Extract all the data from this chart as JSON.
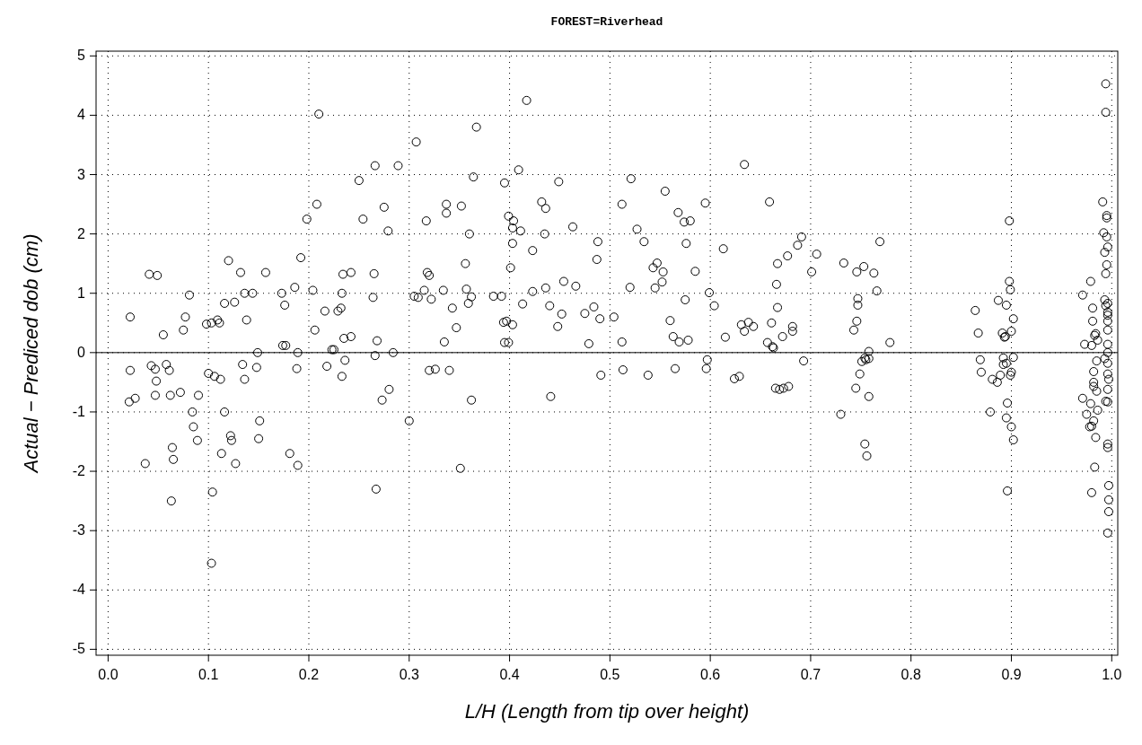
{
  "chart_data": {
    "type": "scatter",
    "title": "FOREST=Riverhead",
    "xlabel": "L/H (Length from tip over height)",
    "ylabel": "Actual − Prediced dob (cm)",
    "xlim": [
      -0.012,
      1.006
    ],
    "ylim": [
      -5.1,
      5.08
    ],
    "xticks": [
      {
        "value": 0,
        "label": "0.0"
      },
      0.1,
      0.2,
      0.3,
      0.4,
      0.5,
      0.6,
      0.7,
      0.8,
      0.9,
      {
        "value": 1,
        "label": "1.0"
      }
    ],
    "yticks": [
      -5,
      -4,
      -3,
      -2,
      -1,
      0,
      1,
      2,
      3,
      4,
      5
    ],
    "grid": true,
    "marker": "circle",
    "ref_lines": [
      {
        "axis": "y",
        "value": 0,
        "color": "#000000"
      }
    ],
    "series": [
      {
        "color": "#000000",
        "x": [
          0.021,
          0.022,
          0.022,
          0.027,
          0.037,
          0.041,
          0.043,
          0.047,
          0.049,
          0.047,
          0.048,
          0.055,
          0.058,
          0.061,
          0.062,
          0.063,
          0.064,
          0.065,
          0.072,
          0.075,
          0.077,
          0.081,
          0.084,
          0.085,
          0.089,
          0.09,
          0.098,
          0.1,
          0.103,
          0.104,
          0.103,
          0.106,
          0.109,
          0.111,
          0.112,
          0.113,
          0.116,
          0.116,
          0.12,
          0.122,
          0.123,
          0.126,
          0.127,
          0.132,
          0.134,
          0.136,
          0.136,
          0.138,
          0.144,
          0.148,
          0.149,
          0.151,
          0.15,
          0.157,
          0.173,
          0.174,
          0.176,
          0.177,
          0.181,
          0.186,
          0.188,
          0.189,
          0.189,
          0.192,
          0.198,
          0.204,
          0.206,
          0.208,
          0.21,
          0.216,
          0.218,
          0.223,
          0.225,
          0.229,
          0.232,
          0.233,
          0.233,
          0.234,
          0.235,
          0.236,
          0.242,
          0.242,
          0.25,
          0.254,
          0.264,
          0.265,
          0.266,
          0.266,
          0.267,
          0.268,
          0.273,
          0.275,
          0.279,
          0.28,
          0.284,
          0.289,
          0.3,
          0.305,
          0.307,
          0.309,
          0.315,
          0.317,
          0.318,
          0.32,
          0.32,
          0.322,
          0.326,
          0.334,
          0.335,
          0.337,
          0.337,
          0.34,
          0.343,
          0.347,
          0.351,
          0.352,
          0.356,
          0.357,
          0.359,
          0.36,
          0.362,
          0.362,
          0.364,
          0.367,
          0.384,
          0.392,
          0.394,
          0.395,
          0.395,
          0.397,
          0.399,
          0.403,
          0.399,
          0.403,
          0.401,
          0.403,
          0.404,
          0.409,
          0.411,
          0.413,
          0.417,
          0.423,
          0.423,
          0.432,
          0.435,
          0.436,
          0.436,
          0.44,
          0.441,
          0.448,
          0.449,
          0.452,
          0.454,
          0.463,
          0.466,
          0.475,
          0.479,
          0.484,
          0.487,
          0.488,
          0.49,
          0.491,
          0.504,
          0.512,
          0.512,
          0.513,
          0.52,
          0.521,
          0.527,
          0.534,
          0.538,
          0.543,
          0.545,
          0.547,
          0.552,
          0.553,
          0.555,
          0.56,
          0.563,
          0.565,
          0.568,
          0.569,
          0.574,
          0.575,
          0.576,
          0.578,
          0.58,
          0.585,
          0.595,
          0.596,
          0.597,
          0.599,
          0.604,
          0.613,
          0.615,
          0.624,
          0.629,
          0.631,
          0.634,
          0.634,
          0.638,
          0.643,
          0.657,
          0.659,
          0.661,
          0.662,
          0.663,
          0.665,
          0.666,
          0.667,
          0.667,
          0.669,
          0.672,
          0.673,
          0.677,
          0.678,
          0.682,
          0.682,
          0.687,
          0.691,
          0.693,
          0.701,
          0.706,
          0.73,
          0.733,
          0.743,
          0.746,
          0.745,
          0.746,
          0.747,
          0.747,
          0.749,
          0.751,
          0.753,
          0.754,
          0.755,
          0.754,
          0.756,
          0.758,
          0.758,
          0.758,
          0.763,
          0.766,
          0.769,
          0.779,
          0.864,
          0.867,
          0.869,
          0.87,
          0.879,
          0.881,
          0.886,
          0.887,
          0.889,
          0.891,
          0.892,
          0.892,
          0.893,
          0.894,
          0.895,
          0.895,
          0.895,
          0.896,
          0.898,
          0.896,
          0.898,
          0.899,
          0.9,
          0.9,
          0.899,
          0.902,
          0.9,
          0.902,
          0.902,
          0.971,
          0.971,
          0.973,
          0.975,
          0.978,
          0.979,
          0.979,
          0.98,
          0.98,
          0.98,
          0.981,
          0.981,
          0.982,
          0.982,
          0.982,
          0.982,
          0.983,
          0.983,
          0.984,
          0.984,
          0.985,
          0.986,
          0.986,
          0.985,
          0.991,
          0.992,
          0.993,
          0.993,
          0.993,
          0.994,
          0.994,
          0.994,
          0.994,
          0.994,
          0.995,
          0.995,
          0.995,
          0.995,
          0.996,
          0.996,
          0.996,
          0.996,
          0.996,
          0.996,
          0.996,
          0.996,
          0.996,
          0.996,
          0.997,
          0.997,
          0.997,
          0.996,
          0.996,
          0.996,
          0.996,
          0.996,
          0.997
        ],
        "values": [
          -0.83,
          0.6,
          -0.3,
          -0.77,
          -1.87,
          1.32,
          -0.22,
          -0.28,
          1.3,
          -0.72,
          -0.48,
          0.3,
          -0.2,
          -0.3,
          -0.72,
          -2.5,
          -1.6,
          -1.8,
          -0.67,
          0.38,
          0.6,
          0.97,
          -1.0,
          -1.25,
          -1.48,
          -0.72,
          0.48,
          -0.35,
          0.5,
          -2.35,
          -3.55,
          -0.4,
          0.55,
          0.5,
          -0.45,
          -1.7,
          0.83,
          -1.0,
          1.55,
          -1.4,
          -1.48,
          0.85,
          -1.87,
          1.35,
          -0.2,
          -0.45,
          1.0,
          0.55,
          1.0,
          -0.25,
          0.0,
          -1.15,
          -1.45,
          1.35,
          1.0,
          0.12,
          0.8,
          0.12,
          -1.7,
          1.1,
          -0.27,
          -1.9,
          0.0,
          1.6,
          2.25,
          1.05,
          0.38,
          2.5,
          4.02,
          0.7,
          -0.23,
          0.05,
          0.05,
          0.7,
          0.75,
          -0.4,
          1.0,
          1.32,
          0.24,
          -0.13,
          1.35,
          0.27,
          2.9,
          2.25,
          0.93,
          1.33,
          -0.05,
          3.15,
          -2.3,
          0.2,
          -0.8,
          2.45,
          2.05,
          -0.62,
          0.0,
          3.15,
          -1.15,
          0.95,
          3.55,
          0.93,
          1.05,
          2.22,
          1.35,
          1.3,
          -0.3,
          0.9,
          -0.28,
          1.05,
          0.18,
          2.35,
          2.5,
          -0.3,
          0.75,
          0.42,
          -1.95,
          2.47,
          1.5,
          1.07,
          0.83,
          2.0,
          0.94,
          -0.8,
          2.96,
          3.8,
          0.95,
          0.95,
          0.51,
          2.86,
          0.17,
          0.53,
          0.17,
          0.47,
          2.3,
          2.1,
          1.43,
          1.84,
          2.22,
          3.08,
          2.05,
          0.82,
          4.25,
          1.03,
          1.72,
          2.54,
          2.0,
          1.09,
          2.43,
          0.79,
          -0.74,
          0.44,
          2.88,
          0.65,
          1.2,
          2.12,
          1.12,
          0.66,
          0.15,
          0.77,
          1.57,
          1.87,
          0.57,
          -0.38,
          0.6,
          2.5,
          0.18,
          -0.29,
          1.1,
          2.93,
          2.08,
          1.87,
          -0.38,
          1.43,
          1.09,
          1.51,
          1.19,
          1.36,
          2.72,
          0.54,
          0.27,
          -0.27,
          2.36,
          0.18,
          2.2,
          0.89,
          1.84,
          0.21,
          2.22,
          1.37,
          2.52,
          -0.27,
          -0.12,
          1.01,
          0.79,
          1.75,
          0.26,
          -0.44,
          -0.4,
          0.47,
          3.17,
          0.36,
          0.51,
          0.44,
          0.17,
          2.54,
          0.5,
          0.1,
          0.08,
          -0.6,
          1.15,
          1.5,
          0.76,
          -0.62,
          0.27,
          -0.6,
          1.63,
          -0.57,
          0.36,
          0.44,
          1.81,
          1.95,
          -0.14,
          1.36,
          1.66,
          -1.04,
          1.51,
          0.38,
          0.53,
          -0.6,
          1.36,
          0.91,
          0.8,
          -0.36,
          -0.15,
          1.45,
          -0.09,
          -0.12,
          -1.54,
          -1.74,
          -0.1,
          0.02,
          -0.74,
          1.34,
          1.04,
          1.87,
          0.17,
          0.71,
          0.33,
          -0.12,
          -0.33,
          -1.0,
          -0.45,
          -0.5,
          0.88,
          -0.38,
          0.33,
          -0.09,
          -0.2,
          0.26,
          0.27,
          0.8,
          -0.18,
          -1.1,
          -0.85,
          1.2,
          -2.33,
          2.22,
          -0.38,
          -0.33,
          -1.25,
          1.06,
          0.57,
          0.36,
          -0.08,
          -1.47,
          -0.77,
          0.97,
          0.14,
          -1.04,
          -1.25,
          1.2,
          -0.86,
          0.12,
          -1.24,
          -2.36,
          0.75,
          0.53,
          -0.32,
          -0.5,
          -0.57,
          -1.15,
          0.29,
          -1.93,
          0.32,
          -1.43,
          -0.65,
          0.21,
          -0.97,
          -0.14,
          2.54,
          2.02,
          0.89,
          1.69,
          -0.1,
          1.33,
          0.79,
          -0.82,
          4.53,
          4.05,
          2.31,
          2.27,
          1.95,
          1.48,
          0.63,
          0.53,
          0.0,
          -0.36,
          -1.54,
          0.38,
          -0.18,
          -0.62,
          -0.83,
          -1.6,
          -2.24,
          -2.48,
          -2.68,
          -3.04,
          1.78,
          0.68,
          0.83,
          0.14,
          -0.45
        ]
      }
    ]
  }
}
